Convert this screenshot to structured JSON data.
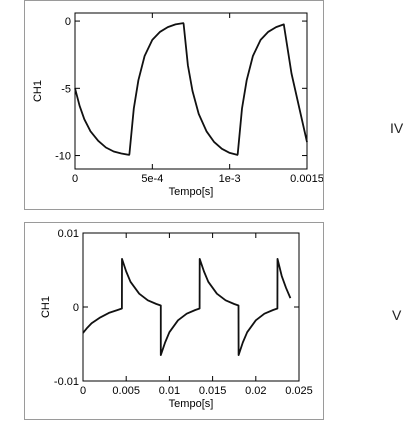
{
  "chart_data": [
    {
      "type": "line",
      "panel_label": "IV",
      "xlabel": "Tempo[s]",
      "ylabel": "CH1",
      "xlim": [
        0,
        0.0015
      ],
      "ylim": [
        -11,
        0.6
      ],
      "xticks": [
        0,
        0.0005,
        0.001,
        0.0015
      ],
      "xtick_labels": [
        "0",
        "5e-4",
        "1e-3",
        "0.0015"
      ],
      "yticks": [
        0,
        -5,
        -10
      ],
      "ytick_labels": [
        "0",
        "-5",
        "-10"
      ],
      "grid": false,
      "series": [
        {
          "color": "#111111",
          "x": [
            0,
            3e-05,
            6e-05,
            0.0001,
            0.00015,
            0.0002,
            0.00025,
            0.0003,
            0.00035,
            0.000352,
            0.00038,
            0.00041,
            0.00045,
            0.0005,
            0.00055,
            0.0006,
            0.00065,
            0.0007,
            0.000702,
            0.00073,
            0.00076,
            0.0008,
            0.00085,
            0.0009,
            0.00095,
            0.001,
            0.00105,
            0.001052,
            0.00108,
            0.00111,
            0.00115,
            0.0012,
            0.00125,
            0.0013,
            0.00135,
            0.0014,
            0.0015
          ],
          "y": [
            -5,
            -6.3,
            -7.3,
            -8.2,
            -8.9,
            -9.4,
            -9.7,
            -9.85,
            -9.95,
            -9.9,
            -6.5,
            -4.4,
            -2.6,
            -1.4,
            -0.8,
            -0.45,
            -0.25,
            -0.15,
            -0.2,
            -3.3,
            -5.2,
            -6.9,
            -8.2,
            -9.0,
            -9.5,
            -9.8,
            -9.95,
            -9.9,
            -6.5,
            -4.4,
            -2.6,
            -1.4,
            -0.8,
            -0.45,
            -0.25,
            -3.9,
            -9.0
          ]
        }
      ]
    },
    {
      "type": "line",
      "panel_label": "V",
      "xlabel": "Tempo[s]",
      "ylabel": "CH1",
      "xlim": [
        0,
        0.025
      ],
      "ylim": [
        -0.01,
        0.01
      ],
      "xticks": [
        0,
        0.005,
        0.01,
        0.015,
        0.02,
        0.025
      ],
      "xtick_labels": [
        "0",
        "0.005",
        "0.01",
        "0.015",
        "0.02",
        "0.025"
      ],
      "yticks": [
        0.01,
        0,
        -0.01
      ],
      "ytick_labels": [
        "0.01",
        "0",
        "-0.01"
      ],
      "grid": false,
      "series": [
        {
          "color": "#111111",
          "x": [
            0,
            0.0005,
            0.001,
            0.002,
            0.003,
            0.004,
            0.0045,
            0.00451,
            0.005,
            0.0055,
            0.0065,
            0.0075,
            0.0085,
            0.009,
            0.00901,
            0.0095,
            0.01,
            0.011,
            0.012,
            0.013,
            0.0135,
            0.01351,
            0.014,
            0.0145,
            0.0155,
            0.0165,
            0.0175,
            0.018,
            0.01801,
            0.0185,
            0.019,
            0.02,
            0.021,
            0.022,
            0.0225,
            0.02251,
            0.023,
            0.0235,
            0.024
          ],
          "y": [
            -0.0035,
            -0.0028,
            -0.0022,
            -0.0014,
            -0.0008,
            -0.0004,
            -0.0002,
            0.0065,
            0.0048,
            0.0034,
            0.0018,
            0.0009,
            0.0004,
            0.0002,
            -0.0065,
            -0.0048,
            -0.0034,
            -0.0018,
            -0.0009,
            -0.0004,
            -0.0002,
            0.0065,
            0.0048,
            0.0034,
            0.0018,
            0.0009,
            0.0004,
            0.0002,
            -0.0065,
            -0.0048,
            -0.0034,
            -0.0018,
            -0.0009,
            -0.0004,
            -0.0002,
            0.0065,
            0.0042,
            0.0026,
            0.0012
          ]
        }
      ]
    }
  ],
  "labels": {
    "iv": "IV",
    "v": "V"
  }
}
